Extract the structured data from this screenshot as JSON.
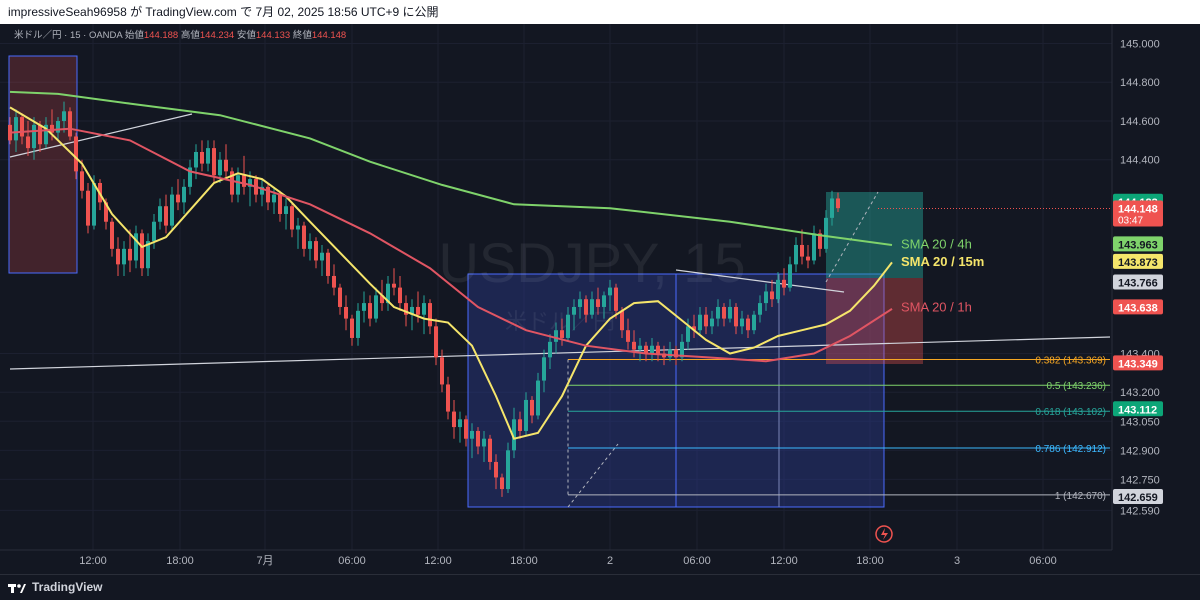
{
  "header": {
    "publish_text": "impressiveSeah96958 が TradingView.com で 7月 02, 2025 18:56 UTC+9 に公開"
  },
  "footer": {
    "brand": "TradingView"
  },
  "colors": {
    "background": "#131722",
    "up": "#26a69a",
    "down": "#ef5350",
    "sma_15m": "#f5e56b",
    "sma_1h": "#e05563",
    "sma_4h": "#7fd36b"
  },
  "chart_data": {
    "type": "candlestick",
    "symbol_line": {
      "symbol": "米ドル／円 · 15 · OANDA",
      "open_label": "始値",
      "open": "144.188",
      "high_label": "高値",
      "high": "144.234",
      "low_label": "安値",
      "low": "144.133",
      "close_label": "終値",
      "close": "144.148"
    },
    "watermark": {
      "main": "USDJPY, 15",
      "sub": "米ドル／円"
    },
    "y_ticks": [
      "145.000",
      "144.800",
      "144.600",
      "144.400",
      "143.400",
      "143.200",
      "143.050",
      "142.900",
      "142.750",
      "142.590"
    ],
    "x_ticks": [
      "12:00",
      "18:00",
      "7月",
      "06:00",
      "12:00",
      "18:00",
      "2",
      "06:00",
      "12:00",
      "18:00",
      "3",
      "06:00"
    ],
    "y_range": [
      142.53,
      145.08
    ],
    "indicator_labels": {
      "sma_4h": "SMA 20 / 4h",
      "sma_15m": "SMA 20 / 15m",
      "sma_1h": "SMA 20 / 1h"
    },
    "price_tags": [
      {
        "value": "144.183",
        "price": 144.183,
        "color": "#0ca678",
        "text_color": "#ffffff"
      },
      {
        "value": "144.148",
        "price": 144.148,
        "color": "#ef5350",
        "text_color": "#ffffff",
        "sub": "03:47"
      },
      {
        "value": "143.963",
        "price": 143.963,
        "color": "#7fd36b",
        "text_color": "#131722"
      },
      {
        "value": "143.873",
        "price": 143.873,
        "color": "#f5e56b",
        "text_color": "#131722"
      },
      {
        "value": "143.766",
        "price": 143.766,
        "color": "#d1d4dc",
        "text_color": "#131722"
      },
      {
        "value": "143.638",
        "price": 143.638,
        "color": "#ef5350",
        "text_color": "#ffffff"
      },
      {
        "value": "143.349",
        "price": 143.349,
        "color": "#ef5350",
        "text_color": "#ffffff"
      },
      {
        "value": "143.112",
        "price": 143.112,
        "color": "#0ca678",
        "text_color": "#ffffff"
      },
      {
        "value": "142.659",
        "price": 142.659,
        "color": "#d1d4dc",
        "text_color": "#131722"
      }
    ],
    "fib_levels": [
      {
        "label": "0.382 (143.369)",
        "price": 143.369,
        "color": "#f5a623"
      },
      {
        "label": "0.5 (143.236)",
        "price": 143.236,
        "color": "#7fd36b"
      },
      {
        "label": "0.618 (143.102)",
        "price": 143.102,
        "color": "#26a69a"
      },
      {
        "label": "0.786 (142.912)",
        "price": 142.912,
        "color": "#3bb9ff"
      },
      {
        "label": "1 (142.670)",
        "price": 142.67,
        "color": "#b2b5be"
      }
    ],
    "series": [
      {
        "name": "SMA 20 / 15m",
        "points": [
          [
            0,
            144.67
          ],
          [
            6,
            144.56
          ],
          [
            12,
            144.38
          ],
          [
            17,
            144.12
          ],
          [
            22,
            143.95
          ],
          [
            26,
            144.0
          ],
          [
            30,
            144.14
          ],
          [
            34,
            144.28
          ],
          [
            38,
            144.33
          ],
          [
            42,
            144.3
          ],
          [
            46,
            144.21
          ],
          [
            50,
            144.08
          ],
          [
            55,
            143.92
          ],
          [
            60,
            143.76
          ],
          [
            64,
            143.64
          ],
          [
            69,
            143.58
          ],
          [
            73,
            143.56
          ],
          [
            77,
            143.44
          ],
          [
            81,
            143.18
          ],
          [
            84,
            142.96
          ],
          [
            88,
            142.99
          ],
          [
            92,
            143.18
          ],
          [
            96,
            143.44
          ],
          [
            100,
            143.58
          ],
          [
            104,
            143.66
          ],
          [
            108,
            143.67
          ],
          [
            112,
            143.57
          ],
          [
            116,
            143.47
          ],
          [
            120,
            143.4
          ],
          [
            124,
            143.43
          ],
          [
            128,
            143.49
          ],
          [
            132,
            143.52
          ],
          [
            136,
            143.55
          ],
          [
            140,
            143.62
          ],
          [
            144,
            143.75
          ],
          [
            147,
            143.87
          ]
        ]
      },
      {
        "name": "SMA 20 / 1h",
        "points": [
          [
            0,
            144.54
          ],
          [
            10,
            144.56
          ],
          [
            20,
            144.5
          ],
          [
            30,
            144.34
          ],
          [
            40,
            144.27
          ],
          [
            50,
            144.17
          ],
          [
            60,
            144.02
          ],
          [
            70,
            143.84
          ],
          [
            78,
            143.64
          ],
          [
            86,
            143.52
          ],
          [
            96,
            143.44
          ],
          [
            106,
            143.4
          ],
          [
            116,
            143.38
          ],
          [
            126,
            143.36
          ],
          [
            134,
            143.4
          ],
          [
            140,
            143.49
          ],
          [
            147,
            143.63
          ]
        ]
      },
      {
        "name": "SMA 20 / 4h",
        "points": [
          [
            0,
            144.75
          ],
          [
            8,
            144.74
          ],
          [
            20,
            144.69
          ],
          [
            35,
            144.63
          ],
          [
            50,
            144.51
          ],
          [
            60,
            144.39
          ],
          [
            72,
            144.27
          ],
          [
            84,
            144.17
          ],
          [
            100,
            144.15
          ],
          [
            120,
            144.08
          ],
          [
            135,
            144.01
          ],
          [
            147,
            143.96
          ]
        ]
      }
    ],
    "candles": [
      [
        0,
        144.58,
        144.62,
        144.48,
        144.5
      ],
      [
        1,
        144.5,
        144.66,
        144.44,
        144.62
      ],
      [
        2,
        144.62,
        144.64,
        144.48,
        144.52
      ],
      [
        3,
        144.52,
        144.6,
        144.42,
        144.46
      ],
      [
        4,
        144.46,
        144.62,
        144.4,
        144.58
      ],
      [
        5,
        144.58,
        144.6,
        144.44,
        144.48
      ],
      [
        6,
        144.48,
        144.62,
        144.46,
        144.58
      ],
      [
        7,
        144.58,
        144.66,
        144.5,
        144.54
      ],
      [
        8,
        144.54,
        144.62,
        144.5,
        144.6
      ],
      [
        9,
        144.6,
        144.7,
        144.54,
        144.65
      ],
      [
        10,
        144.65,
        144.67,
        144.5,
        144.52
      ],
      [
        11,
        144.52,
        144.54,
        144.3,
        144.34
      ],
      [
        12,
        144.34,
        144.4,
        144.2,
        144.24
      ],
      [
        13,
        144.24,
        144.28,
        144.02,
        144.06
      ],
      [
        14,
        144.06,
        144.32,
        144.04,
        144.28
      ],
      [
        15,
        144.28,
        144.3,
        144.14,
        144.18
      ],
      [
        16,
        144.18,
        144.2,
        144.04,
        144.08
      ],
      [
        17,
        144.08,
        144.1,
        143.9,
        143.94
      ],
      [
        18,
        143.94,
        144.0,
        143.8,
        143.86
      ],
      [
        19,
        143.86,
        143.98,
        143.8,
        143.94
      ],
      [
        20,
        143.94,
        144.04,
        143.82,
        143.88
      ],
      [
        21,
        143.88,
        144.06,
        143.84,
        144.02
      ],
      [
        22,
        144.02,
        144.04,
        143.8,
        143.84
      ],
      [
        23,
        143.84,
        144.02,
        143.8,
        143.98
      ],
      [
        24,
        143.98,
        144.12,
        143.94,
        144.08
      ],
      [
        25,
        144.08,
        144.2,
        144.04,
        144.16
      ],
      [
        26,
        144.16,
        144.22,
        144.02,
        144.06
      ],
      [
        27,
        144.06,
        144.26,
        144.04,
        144.22
      ],
      [
        28,
        144.22,
        144.3,
        144.14,
        144.18
      ],
      [
        29,
        144.18,
        144.3,
        144.12,
        144.26
      ],
      [
        30,
        144.26,
        144.4,
        144.22,
        144.36
      ],
      [
        31,
        144.36,
        144.48,
        144.3,
        144.44
      ],
      [
        32,
        144.44,
        144.5,
        144.34,
        144.38
      ],
      [
        33,
        144.38,
        144.5,
        144.34,
        144.46
      ],
      [
        34,
        144.46,
        144.5,
        144.28,
        144.32
      ],
      [
        35,
        144.32,
        144.44,
        144.28,
        144.4
      ],
      [
        36,
        144.4,
        144.48,
        144.3,
        144.34
      ],
      [
        37,
        144.34,
        144.36,
        144.18,
        144.22
      ],
      [
        38,
        144.22,
        144.36,
        144.18,
        144.32
      ],
      [
        39,
        144.32,
        144.42,
        144.22,
        144.26
      ],
      [
        40,
        144.26,
        144.34,
        144.16,
        144.3
      ],
      [
        41,
        144.3,
        144.32,
        144.18,
        144.22
      ],
      [
        42,
        144.22,
        144.3,
        144.16,
        144.26
      ],
      [
        43,
        144.26,
        144.28,
        144.14,
        144.18
      ],
      [
        44,
        144.18,
        144.26,
        144.12,
        144.22
      ],
      [
        45,
        144.22,
        144.24,
        144.08,
        144.12
      ],
      [
        46,
        144.12,
        144.2,
        144.04,
        144.16
      ],
      [
        47,
        144.16,
        144.18,
        144.0,
        144.04
      ],
      [
        48,
        144.04,
        144.1,
        143.94,
        144.06
      ],
      [
        49,
        144.06,
        144.08,
        143.9,
        143.94
      ],
      [
        50,
        143.94,
        144.02,
        143.88,
        143.98
      ],
      [
        51,
        143.98,
        144.0,
        143.84,
        143.88
      ],
      [
        52,
        143.88,
        143.96,
        143.8,
        143.92
      ],
      [
        53,
        143.92,
        143.94,
        143.76,
        143.8
      ],
      [
        54,
        143.8,
        143.86,
        143.7,
        143.74
      ],
      [
        55,
        143.74,
        143.76,
        143.6,
        143.64
      ],
      [
        56,
        143.64,
        143.7,
        143.52,
        143.58
      ],
      [
        57,
        143.58,
        143.6,
        143.44,
        143.48
      ],
      [
        58,
        143.48,
        143.66,
        143.44,
        143.62
      ],
      [
        59,
        143.62,
        143.72,
        143.56,
        143.66
      ],
      [
        60,
        143.66,
        143.7,
        143.54,
        143.58
      ],
      [
        61,
        143.58,
        143.74,
        143.56,
        143.7
      ],
      [
        62,
        143.7,
        143.78,
        143.62,
        143.66
      ],
      [
        63,
        143.66,
        143.8,
        143.62,
        143.76
      ],
      [
        64,
        143.76,
        143.84,
        143.7,
        143.74
      ],
      [
        65,
        143.74,
        143.8,
        143.62,
        143.66
      ],
      [
        66,
        143.66,
        143.7,
        143.54,
        143.6
      ],
      [
        67,
        143.6,
        143.68,
        143.52,
        143.64
      ],
      [
        68,
        143.64,
        143.72,
        143.56,
        143.6
      ],
      [
        69,
        143.6,
        143.7,
        143.5,
        143.66
      ],
      [
        70,
        143.66,
        143.68,
        143.5,
        143.54
      ],
      [
        71,
        143.54,
        143.58,
        143.34,
        143.38
      ],
      [
        72,
        143.38,
        143.42,
        143.2,
        143.24
      ],
      [
        73,
        143.24,
        143.28,
        143.06,
        143.1
      ],
      [
        74,
        143.1,
        143.16,
        142.96,
        143.02
      ],
      [
        75,
        143.02,
        143.1,
        142.94,
        143.06
      ],
      [
        76,
        143.06,
        143.08,
        142.92,
        142.96
      ],
      [
        77,
        142.96,
        143.04,
        142.86,
        143.0
      ],
      [
        78,
        143.0,
        143.02,
        142.88,
        142.92
      ],
      [
        79,
        142.92,
        143.0,
        142.84,
        142.96
      ],
      [
        80,
        142.96,
        142.98,
        142.8,
        142.84
      ],
      [
        81,
        142.84,
        142.88,
        142.7,
        142.76
      ],
      [
        82,
        142.76,
        142.78,
        142.66,
        142.7
      ],
      [
        83,
        142.7,
        142.94,
        142.68,
        142.9
      ],
      [
        84,
        142.9,
        143.12,
        142.86,
        143.06
      ],
      [
        85,
        143.06,
        143.1,
        142.96,
        143.0
      ],
      [
        86,
        143.0,
        143.2,
        142.98,
        143.16
      ],
      [
        87,
        143.16,
        143.18,
        143.04,
        143.08
      ],
      [
        88,
        143.08,
        143.3,
        143.06,
        143.26
      ],
      [
        89,
        143.26,
        143.42,
        143.2,
        143.38
      ],
      [
        90,
        143.38,
        143.5,
        143.32,
        143.46
      ],
      [
        91,
        143.46,
        143.56,
        143.4,
        143.52
      ],
      [
        92,
        143.52,
        143.58,
        143.44,
        143.48
      ],
      [
        93,
        143.48,
        143.64,
        143.46,
        143.6
      ],
      [
        94,
        143.6,
        143.68,
        143.52,
        143.64
      ],
      [
        95,
        143.64,
        143.72,
        143.58,
        143.68
      ],
      [
        96,
        143.68,
        143.7,
        143.56,
        143.6
      ],
      [
        97,
        143.6,
        143.72,
        143.58,
        143.68
      ],
      [
        98,
        143.68,
        143.74,
        143.6,
        143.64
      ],
      [
        99,
        143.64,
        143.72,
        143.58,
        143.7
      ],
      [
        100,
        143.7,
        143.78,
        143.62,
        143.74
      ],
      [
        101,
        143.74,
        143.76,
        143.58,
        143.62
      ],
      [
        102,
        143.62,
        143.64,
        143.48,
        143.52
      ],
      [
        103,
        143.52,
        143.58,
        143.42,
        143.46
      ],
      [
        104,
        143.46,
        143.52,
        143.38,
        143.42
      ],
      [
        105,
        143.42,
        143.48,
        143.36,
        143.44
      ],
      [
        106,
        143.44,
        143.46,
        143.36,
        143.4
      ],
      [
        107,
        143.4,
        143.48,
        143.36,
        143.44
      ],
      [
        108,
        143.44,
        143.46,
        143.36,
        143.4
      ],
      [
        109,
        143.4,
        143.44,
        143.34,
        143.38
      ],
      [
        110,
        143.38,
        143.46,
        143.36,
        143.42
      ],
      [
        111,
        143.42,
        143.44,
        143.34,
        143.38
      ],
      [
        112,
        143.38,
        143.5,
        143.36,
        143.46
      ],
      [
        113,
        143.46,
        143.58,
        143.42,
        143.54
      ],
      [
        114,
        143.54,
        143.6,
        143.48,
        143.52
      ],
      [
        115,
        143.52,
        143.64,
        143.5,
        143.6
      ],
      [
        116,
        143.6,
        143.64,
        143.5,
        143.54
      ],
      [
        117,
        143.54,
        143.62,
        143.5,
        143.58
      ],
      [
        118,
        143.58,
        143.68,
        143.54,
        143.64
      ],
      [
        119,
        143.64,
        143.66,
        143.54,
        143.58
      ],
      [
        120,
        143.58,
        143.68,
        143.56,
        143.64
      ],
      [
        121,
        143.64,
        143.66,
        143.5,
        143.54
      ],
      [
        122,
        143.54,
        143.62,
        143.5,
        143.58
      ],
      [
        123,
        143.58,
        143.6,
        143.48,
        143.52
      ],
      [
        124,
        143.52,
        143.62,
        143.5,
        143.6
      ],
      [
        125,
        143.6,
        143.7,
        143.56,
        143.66
      ],
      [
        126,
        143.66,
        143.76,
        143.62,
        143.72
      ],
      [
        127,
        143.72,
        143.78,
        143.64,
        143.68
      ],
      [
        128,
        143.68,
        143.82,
        143.66,
        143.78
      ],
      [
        129,
        143.78,
        143.84,
        143.7,
        143.74
      ],
      [
        130,
        143.74,
        143.9,
        143.72,
        143.86
      ],
      [
        131,
        143.86,
        144.0,
        143.82,
        143.96
      ],
      [
        132,
        143.96,
        144.04,
        143.86,
        143.9
      ],
      [
        133,
        143.9,
        143.96,
        143.84,
        143.88
      ],
      [
        134,
        143.88,
        144.06,
        143.86,
        144.02
      ],
      [
        135,
        144.02,
        144.04,
        143.9,
        143.94
      ],
      [
        136,
        143.94,
        144.14,
        143.92,
        144.1
      ],
      [
        137,
        144.1,
        144.24,
        144.06,
        144.2
      ],
      [
        138,
        144.2,
        144.23,
        144.13,
        144.15
      ]
    ]
  }
}
